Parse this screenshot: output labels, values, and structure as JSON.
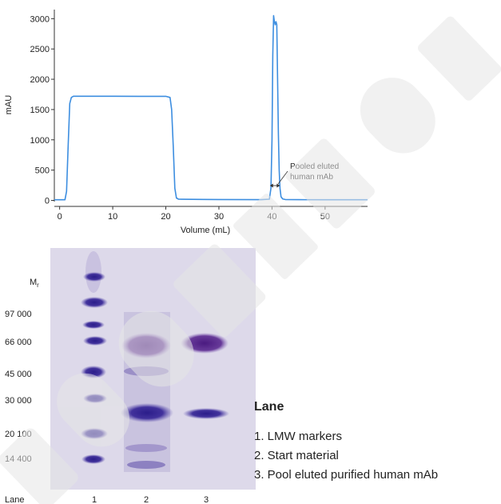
{
  "chart_data": {
    "type": "line",
    "xlabel": "Volume (mL)",
    "ylabel": "mAU",
    "xlim": [
      -1,
      58
    ],
    "ylim": [
      -20,
      3150
    ],
    "xticks": [
      0,
      10,
      20,
      30,
      40,
      50
    ],
    "yticks": [
      0,
      500,
      1000,
      1500,
      2000,
      2500,
      3000
    ],
    "grid": false,
    "color": "#3d8ee0",
    "series": [
      {
        "x": [
          -1,
          1,
          1.3,
          1.6,
          1.9,
          2.2,
          2.6,
          3,
          5,
          10,
          15,
          20,
          20.8,
          21.1,
          21.4,
          21.7,
          22.0,
          22.4,
          23,
          30,
          38,
          39.5,
          39.8,
          40.0,
          40.15,
          40.3,
          40.45,
          40.6,
          40.75,
          40.9,
          41.05,
          41.2,
          41.35,
          41.5,
          41.7,
          42.0,
          42.5,
          45,
          50,
          58
        ],
        "y": [
          10,
          10,
          150,
          900,
          1600,
          1700,
          1720,
          1720,
          1720,
          1720,
          1718,
          1718,
          1700,
          1500,
          900,
          200,
          40,
          20,
          18,
          15,
          12,
          20,
          200,
          1000,
          2400,
          3050,
          2950,
          2900,
          2950,
          2900,
          2000,
          1100,
          500,
          200,
          60,
          25,
          15,
          12,
          10,
          10
        ]
      }
    ],
    "annotation": {
      "text_line1": "Pooled eluted",
      "text_line2": "human mAb",
      "x_start": 39.6,
      "x_end": 41.5
    }
  },
  "gel": {
    "mr_label": "M",
    "mr_subscript": "r",
    "markers": [
      "97 000",
      "66 000",
      "45 000",
      "30 000",
      "20 100",
      "14 400"
    ],
    "lane_header": "Lane",
    "lane_numbers": [
      "1",
      "2",
      "3"
    ]
  },
  "legend": {
    "title": "Lane",
    "items": [
      "1. LMW markers",
      "2. Start material",
      "3. Pool eluted purified human mAb"
    ]
  }
}
